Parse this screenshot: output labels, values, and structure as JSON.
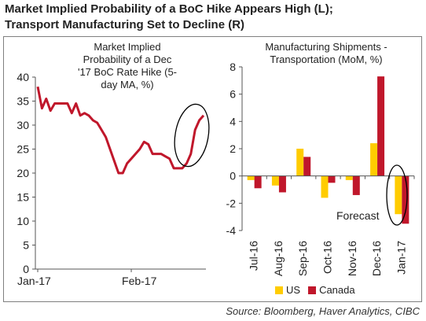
{
  "title": {
    "line1": "Market Implied Probability of a BoC Hike Appears High (L);",
    "line2": "Transport Manufacturing Set to Decline (R)"
  },
  "source": "Source: Bloomberg, Haver Analytics, CIBC",
  "chart_data": [
    {
      "type": "line",
      "title_lines": [
        "Market Implied",
        "Probability of a Dec",
        "'17 BoC Rate Hike (5-",
        "day MA, %)"
      ],
      "xlabels": [
        "Jan-17",
        "Feb-17"
      ],
      "ylim": [
        0,
        40
      ],
      "yticks": [
        0,
        5,
        10,
        15,
        20,
        25,
        30,
        35,
        40
      ],
      "series": [
        {
          "color": "#c0172b",
          "values": [
            38,
            33.5,
            35.5,
            33,
            34.5,
            34.5,
            34.5,
            34.5,
            32.5,
            34.5,
            32,
            32.5,
            32,
            31,
            30.5,
            29,
            27.5,
            25,
            22.5,
            20,
            20,
            22,
            23,
            24,
            25,
            26.5,
            26,
            24,
            24,
            24,
            23.5,
            23,
            21,
            21,
            21,
            22,
            24,
            29,
            31,
            32
          ]
        }
      ],
      "annotations": [
        "ellipse around final rise"
      ]
    },
    {
      "type": "bar",
      "title_lines": [
        "Manufacturing Shipments -",
        "Transportation (MoM, %)"
      ],
      "categories": [
        "Jul-16",
        "Aug-16",
        "Sep-16",
        "Oct-16",
        "Nov-16",
        "Dec-16",
        "Jan-17"
      ],
      "ylim": [
        -4,
        8
      ],
      "yticks": [
        -4,
        -2,
        0,
        2,
        4,
        6,
        8
      ],
      "series": [
        {
          "name": "US",
          "color": "#ffcc00",
          "values": [
            -0.3,
            -0.7,
            2.0,
            -1.6,
            -0.3,
            2.4,
            -2.8
          ]
        },
        {
          "name": "Canada",
          "color": "#c0172b",
          "values": [
            -0.9,
            -1.2,
            1.4,
            -0.5,
            -1.4,
            7.3,
            -3.5
          ]
        }
      ],
      "annotations": [
        "Forecast"
      ]
    }
  ]
}
